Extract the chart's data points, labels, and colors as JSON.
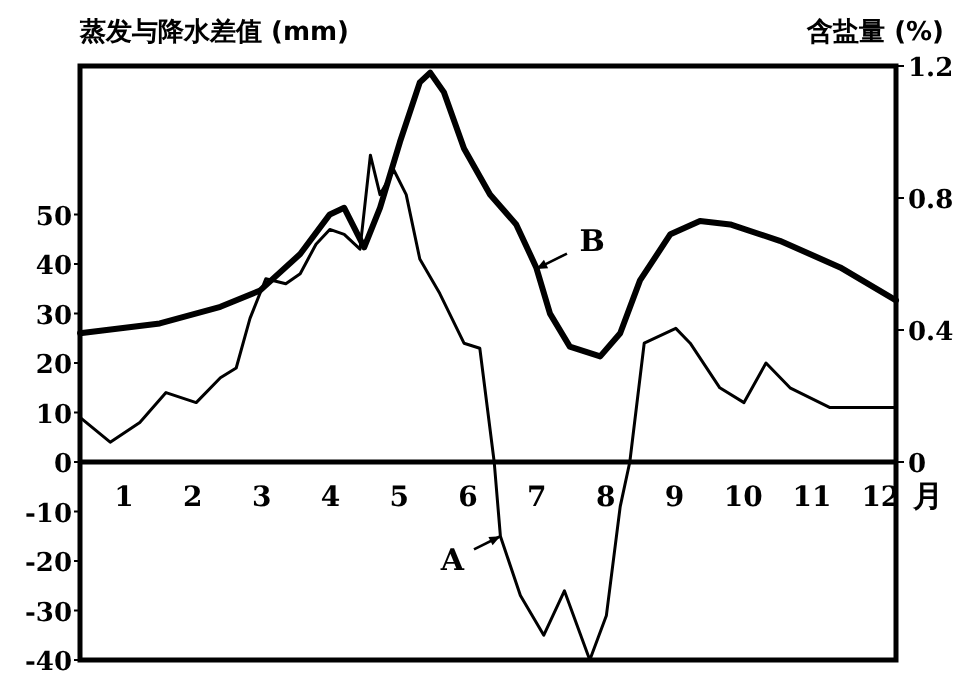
{
  "chart_data": {
    "type": "line",
    "ylabel": "蒸发与降水差值 (mm)",
    "y2label": "含盐量 (%)",
    "xlabel": "月",
    "xlim": [
      0.36,
      12.22
    ],
    "xticks": [
      1,
      2,
      3,
      4,
      5,
      6,
      7,
      8,
      9,
      10,
      11,
      12
    ],
    "ylim": [
      -40,
      80
    ],
    "yticks": [
      -40,
      -30,
      -20,
      -10,
      0,
      10,
      20,
      30,
      40,
      50
    ],
    "y2lim": [
      -0.6,
      1.2
    ],
    "y2ticks": [
      0,
      0.4,
      0.8,
      1.2
    ],
    "series": [
      {
        "color": "#000000",
        "x": [
          0.36,
          0.8,
          1.23,
          1.61,
          2.05,
          2.4,
          2.63,
          2.83,
          3.06,
          3.35,
          3.56,
          3.79,
          3.99,
          4.2,
          4.43,
          4.58,
          4.72,
          4.92,
          5.1,
          5.3,
          5.59,
          5.94,
          6.17,
          6.38,
          6.47,
          6.76,
          7.1,
          7.4,
          7.77,
          8.01,
          8.21,
          8.35,
          8.56,
          9.02,
          9.23,
          9.66,
          10.01,
          10.33,
          10.68,
          11.26,
          11.7,
          12.22
        ],
        "values": [
          9,
          4,
          8,
          14,
          12,
          17,
          19,
          29,
          37,
          36,
          38,
          44,
          47,
          46,
          43,
          62,
          54,
          59,
          54,
          41,
          34,
          24,
          23,
          0,
          -15,
          -27,
          -35,
          -26,
          -40,
          -31,
          -9,
          0,
          24,
          27,
          24,
          15,
          12,
          20,
          15,
          11,
          11,
          11
        ]
      },
      {
        "color": "#000000",
        "axis": "y2",
        "x": [
          0.36,
          1.52,
          2.4,
          2.98,
          3.56,
          3.99,
          4.2,
          4.49,
          4.72,
          5.01,
          5.3,
          5.45,
          5.65,
          5.94,
          6.32,
          6.7,
          6.99,
          7.19,
          7.48,
          7.92,
          8.21,
          8.5,
          8.94,
          9.37,
          9.81,
          10.53,
          11.41,
          12.22
        ],
        "values": [
          0.39,
          0.42,
          0.47,
          0.52,
          0.63,
          0.75,
          0.77,
          0.65,
          0.77,
          0.97,
          1.15,
          1.18,
          1.12,
          0.95,
          0.81,
          0.72,
          0.59,
          0.45,
          0.35,
          0.32,
          0.39,
          0.55,
          0.69,
          0.73,
          0.72,
          0.67,
          0.59,
          0.49
        ]
      }
    ],
    "annotations": [
      {
        "text": "A",
        "x": 6.47,
        "y": -15
      },
      {
        "text": "B",
        "x": 6.99,
        "y": 39
      }
    ]
  }
}
